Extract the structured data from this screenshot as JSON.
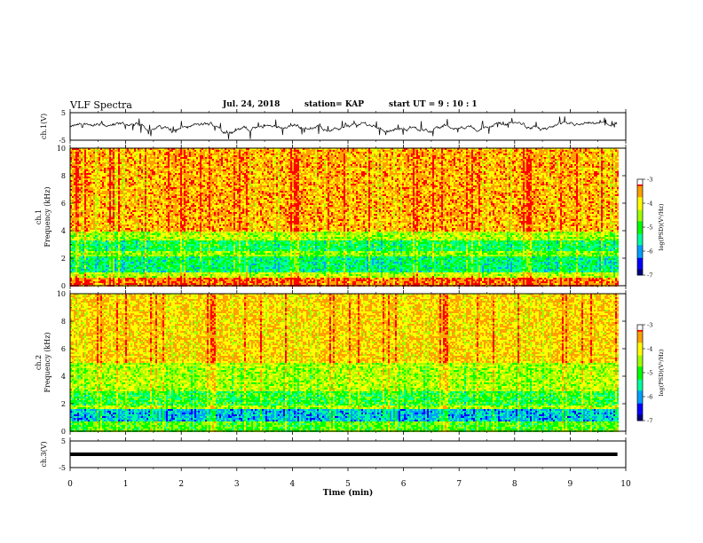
{
  "header": {
    "title": "VLF Spectra",
    "date": "Jul. 24, 2018",
    "station": "station= KAP",
    "start": "start  UT =   9 : 10 : 1"
  },
  "colors": {
    "spectrogram_palette": [
      "#00007f",
      "#0000ff",
      "#00a0ff",
      "#00ffa0",
      "#00ff00",
      "#a0ff00",
      "#ffff00",
      "#ffa000",
      "#ff0000",
      "#ffffff"
    ],
    "waveform": "#000000"
  },
  "chart_data": [
    {
      "type": "line",
      "panel": "ch1-waveform",
      "ylabel": "ch.1(V)",
      "ylim": [
        -5,
        5
      ],
      "yticks": [
        "5",
        "-5"
      ],
      "xlim": [
        0,
        10
      ],
      "series": [
        {
          "values_description_only_in_plot": true
        }
      ],
      "amplitude_range_estimate": [
        -2.5,
        1.5
      ]
    },
    {
      "type": "heatmap",
      "panel": "ch1-spectrogram",
      "ylabel": "ch.1\nFrequency (kHz)",
      "ylabel_line1": "ch.1",
      "ylabel_line2": "Frequency (kHz)",
      "ylim": [
        0,
        10
      ],
      "yticks": [
        "0",
        "2",
        "4",
        "6",
        "8",
        "10"
      ],
      "xlim": [
        0,
        10
      ],
      "data_extent_min": [
        0,
        9.85
      ],
      "colorbar": {
        "label": "log(PSD)(V²/Hz)",
        "ticks": [
          "-3",
          "-4",
          "-5",
          "-6",
          "-7"
        ],
        "range": [
          -7,
          -3
        ]
      },
      "bands": [
        {
          "f_low": 4.0,
          "f_high": 10.0,
          "level": -3.6
        },
        {
          "f_low": 3.3,
          "f_high": 4.0,
          "level": -4.4
        },
        {
          "f_low": 2.6,
          "f_high": 3.3,
          "level": -5.2
        },
        {
          "f_low": 2.2,
          "f_high": 2.6,
          "level": -4.6
        },
        {
          "f_low": 1.0,
          "f_high": 2.2,
          "level": -5.3
        },
        {
          "f_low": 0.6,
          "f_high": 1.0,
          "level": -4.3
        },
        {
          "f_low": 0.0,
          "f_high": 0.6,
          "level": -3.3
        }
      ]
    },
    {
      "type": "heatmap",
      "panel": "ch2-spectrogram",
      "ylabel_line1": "ch.2",
      "ylabel_line2": "Frequency (kHz)",
      "ylim": [
        0,
        10
      ],
      "yticks": [
        "0",
        "2",
        "4",
        "6",
        "8",
        "10"
      ],
      "xlim": [
        0,
        10
      ],
      "data_extent_min": [
        0,
        9.85
      ],
      "colorbar": {
        "label": "log(PSD)(V²/Hz)",
        "ticks": [
          "-3",
          "-4",
          "-5",
          "-6",
          "-7"
        ],
        "range": [
          -7,
          -3
        ]
      },
      "bands": [
        {
          "f_low": 5.0,
          "f_high": 10.0,
          "level": -3.8
        },
        {
          "f_low": 3.0,
          "f_high": 5.0,
          "level": -4.4
        },
        {
          "f_low": 2.0,
          "f_high": 3.0,
          "level": -5.0
        },
        {
          "f_low": 1.7,
          "f_high": 2.0,
          "level": -4.4
        },
        {
          "f_low": 0.8,
          "f_high": 1.7,
          "level": -5.8
        },
        {
          "f_low": 0.0,
          "f_high": 0.8,
          "level": -4.8
        }
      ]
    },
    {
      "type": "line",
      "panel": "ch3-waveform",
      "ylabel": "ch.3(V)",
      "ylim": [
        -5,
        5
      ],
      "yticks": [
        "5",
        "-5"
      ],
      "xlim": [
        0,
        10
      ],
      "series": [
        {
          "constant_value": 0,
          "x_end": 9.85
        }
      ]
    }
  ],
  "xaxis": {
    "label": "Time (min)",
    "ticks": [
      "0",
      "1",
      "2",
      "3",
      "4",
      "5",
      "6",
      "7",
      "8",
      "9",
      "10"
    ]
  }
}
